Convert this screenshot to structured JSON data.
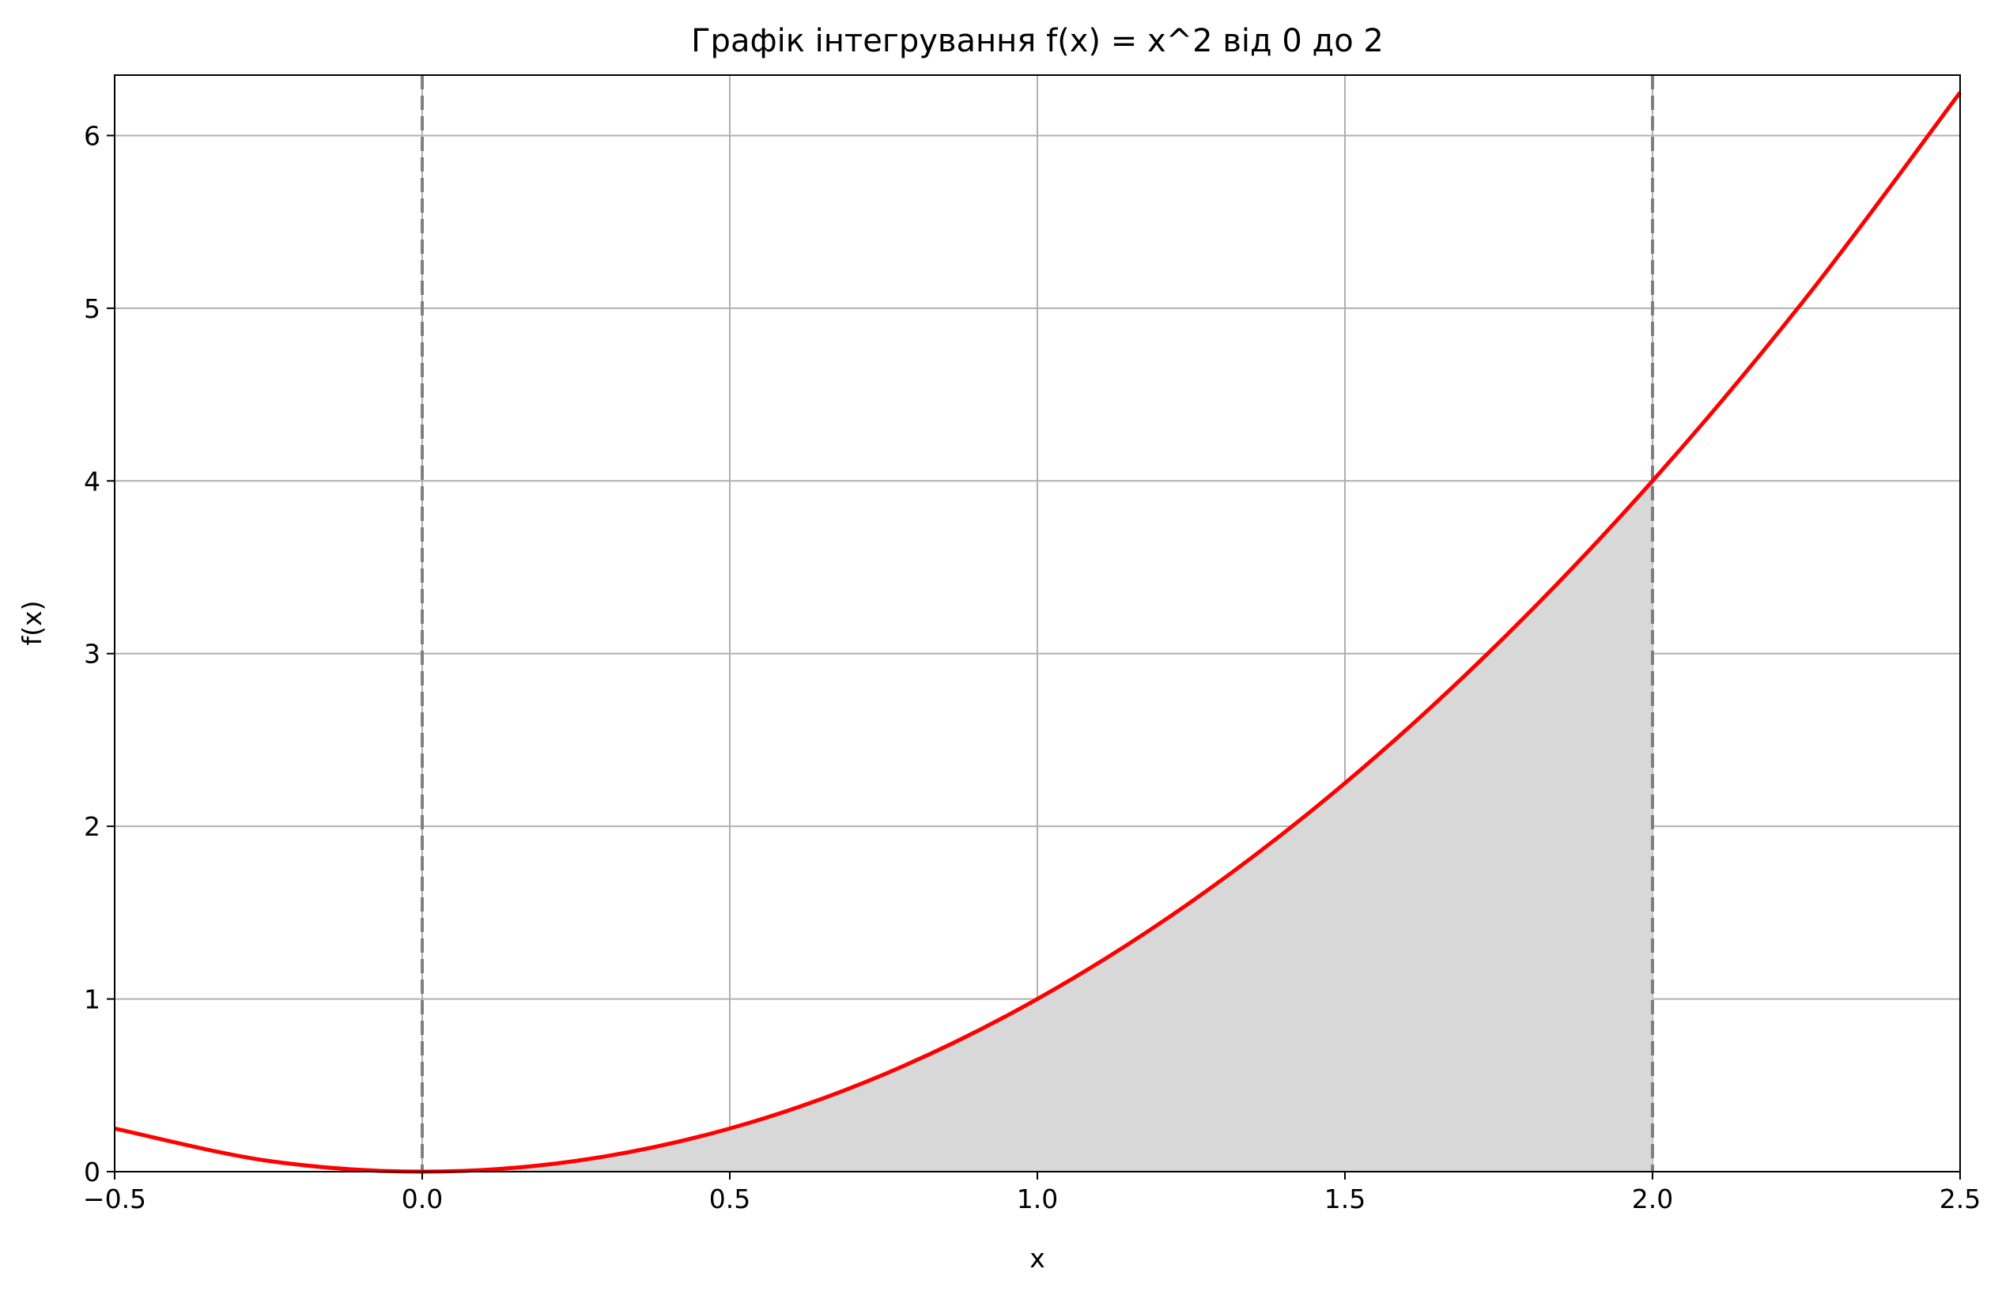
{
  "chart_data": {
    "type": "line",
    "title": "Графік інтегрування f(x) = x^2 від 0 до 2",
    "xlabel": "x",
    "ylabel": "f(x)",
    "xlim": [
      -0.5,
      2.5
    ],
    "ylim": [
      0,
      6.35
    ],
    "grid": true,
    "x_ticks": [
      {
        "value": -0.5,
        "label": "−0.5"
      },
      {
        "value": 0.0,
        "label": "0.0"
      },
      {
        "value": 0.5,
        "label": "0.5"
      },
      {
        "value": 1.0,
        "label": "1.0"
      },
      {
        "value": 1.5,
        "label": "1.5"
      },
      {
        "value": 2.0,
        "label": "2.0"
      },
      {
        "value": 2.5,
        "label": "2.5"
      }
    ],
    "y_ticks": [
      {
        "value": 0,
        "label": "0"
      },
      {
        "value": 1,
        "label": "1"
      },
      {
        "value": 2,
        "label": "2"
      },
      {
        "value": 3,
        "label": "3"
      },
      {
        "value": 4,
        "label": "4"
      },
      {
        "value": 5,
        "label": "5"
      },
      {
        "value": 6,
        "label": "6"
      }
    ],
    "series": [
      {
        "function": "x^2",
        "color": "#ff0000",
        "x": [
          -0.5,
          -0.25,
          0.0,
          0.25,
          0.5,
          0.75,
          1.0,
          1.25,
          1.5,
          1.75,
          2.0,
          2.25,
          2.5
        ],
        "y": [
          0.25,
          0.0625,
          0.0,
          0.0625,
          0.25,
          0.5625,
          1.0,
          1.5625,
          2.25,
          3.0625,
          4.0,
          5.0625,
          6.25
        ]
      }
    ],
    "shaded_region": {
      "x_from": 0,
      "x_to": 2,
      "color": "#d8d8d8"
    },
    "vertical_lines": [
      {
        "x": 0,
        "style": "dashed",
        "color": "#808080"
      },
      {
        "x": 2,
        "style": "dashed",
        "color": "#808080"
      }
    ]
  }
}
